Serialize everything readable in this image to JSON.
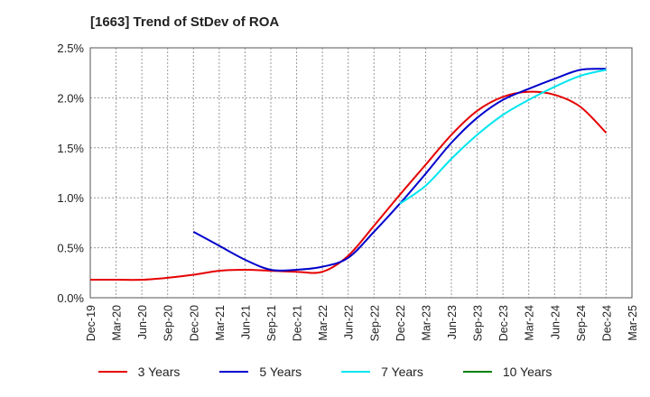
{
  "chart_data": {
    "type": "line",
    "title": "[1663]  Trend of StDev of ROA",
    "ylim": [
      0,
      2.5
    ],
    "yticks": [
      "0.0%",
      "0.5%",
      "1.0%",
      "1.5%",
      "2.0%",
      "2.5%"
    ],
    "xticks": [
      "Dec-19",
      "Mar-20",
      "Jun-20",
      "Sep-20",
      "Dec-20",
      "Mar-21",
      "Jun-21",
      "Sep-21",
      "Dec-21",
      "Mar-22",
      "Jun-22",
      "Sep-22",
      "Dec-22",
      "Mar-23",
      "Jun-23",
      "Sep-23",
      "Dec-23",
      "Mar-24",
      "Jun-24",
      "Sep-24",
      "Dec-24",
      "Mar-25"
    ],
    "grid": true,
    "legend_position": "bottom",
    "series": [
      {
        "name": "3 Years",
        "color": "#e60000",
        "x": [
          "Dec-19",
          "Mar-20",
          "Jun-20",
          "Sep-20",
          "Dec-20",
          "Mar-21",
          "Jun-21",
          "Sep-21",
          "Dec-21",
          "Mar-22",
          "Jun-22",
          "Sep-22",
          "Dec-22",
          "Mar-23",
          "Jun-23",
          "Sep-23",
          "Dec-23",
          "Mar-24",
          "Jun-24",
          "Sep-24",
          "Dec-24"
        ],
        "values": [
          0.18,
          0.18,
          0.18,
          0.2,
          0.23,
          0.27,
          0.28,
          0.27,
          0.26,
          0.26,
          0.42,
          0.72,
          1.03,
          1.33,
          1.63,
          1.87,
          2.01,
          2.06,
          2.03,
          1.91,
          1.65
        ]
      },
      {
        "name": "5 Years",
        "color": "#0000cc",
        "x": [
          "Dec-20",
          "Mar-21",
          "Jun-21",
          "Sep-21",
          "Dec-21",
          "Mar-22",
          "Jun-22",
          "Sep-22",
          "Dec-22",
          "Mar-23",
          "Jun-23",
          "Sep-23",
          "Dec-23",
          "Mar-24",
          "Jun-24",
          "Sep-24",
          "Dec-24"
        ],
        "values": [
          0.66,
          0.52,
          0.38,
          0.28,
          0.28,
          0.31,
          0.4,
          0.66,
          0.94,
          1.24,
          1.55,
          1.8,
          1.98,
          2.09,
          2.19,
          2.28,
          2.29
        ]
      },
      {
        "name": "7 Years",
        "color": "#00e5ee",
        "x": [
          "Dec-22",
          "Mar-23",
          "Jun-23",
          "Sep-23",
          "Dec-23",
          "Mar-24",
          "Jun-24",
          "Sep-24",
          "Dec-24"
        ],
        "values": [
          0.94,
          1.12,
          1.39,
          1.63,
          1.83,
          1.98,
          2.11,
          2.22,
          2.28
        ]
      },
      {
        "name": "10 Years",
        "color": "#008000",
        "x": [],
        "values": []
      }
    ]
  }
}
